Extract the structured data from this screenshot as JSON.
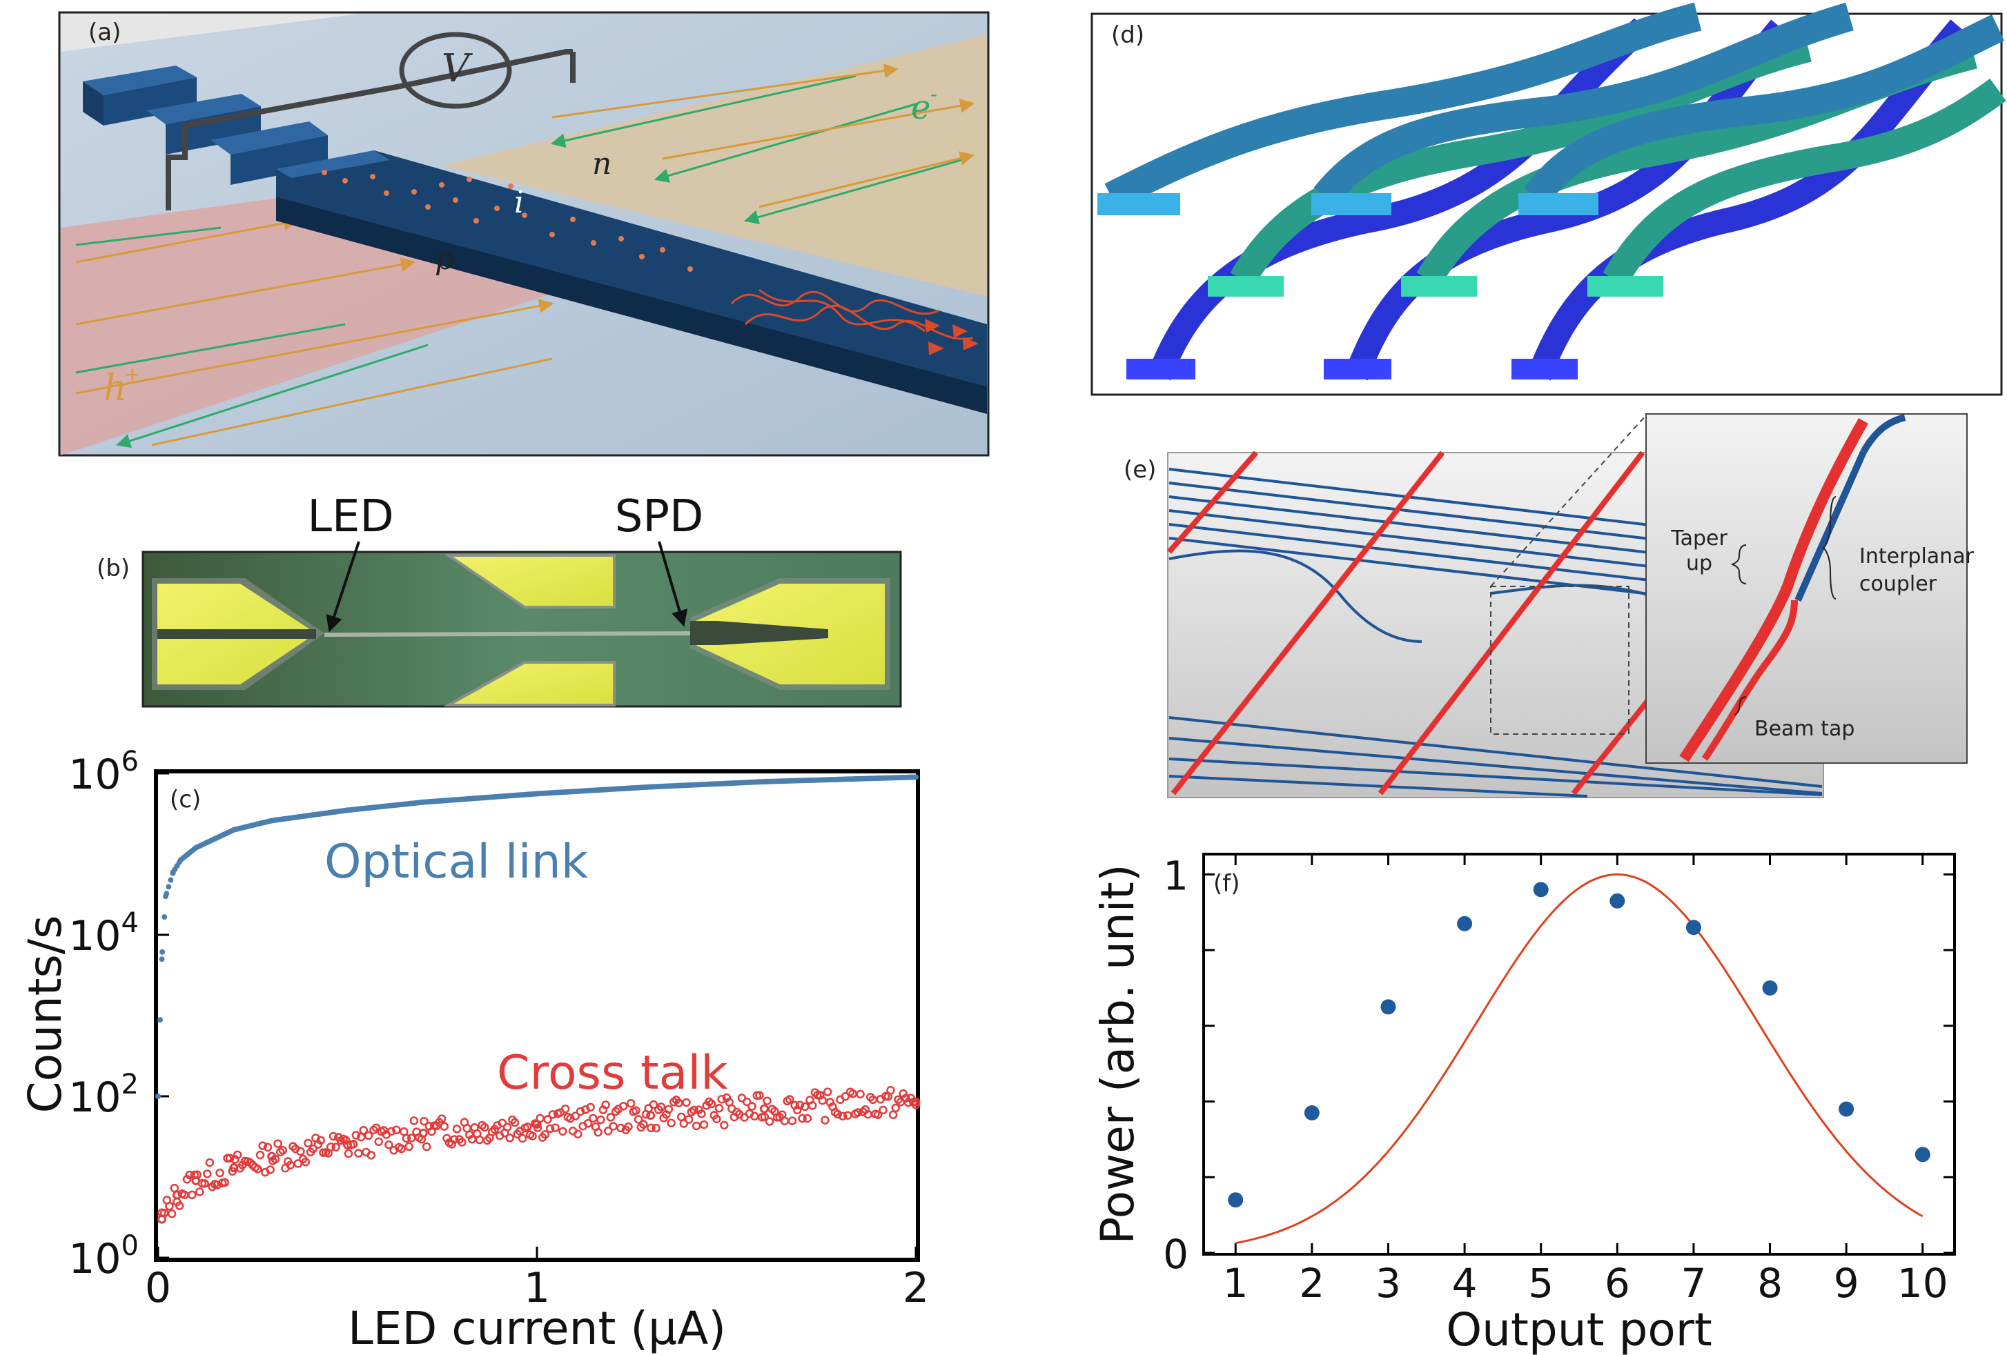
{
  "panels": {
    "a": {
      "letter": "(a)",
      "voltage_symbol": "V",
      "labels": {
        "n": "n",
        "i": "i",
        "p": "p",
        "electron": "e",
        "electron_sup": "-",
        "hole": "h",
        "hole_sup": "+"
      }
    },
    "b": {
      "letter": "(b)",
      "led_label": "LED",
      "spd_label": "SPD"
    },
    "c": {
      "letter": "(c)"
    },
    "d": {
      "letter": "(d)"
    },
    "e": {
      "letter": "(e)",
      "callouts": {
        "taper_line1": "Taper",
        "taper_line2": "up",
        "coupler_line1": "Interplanar",
        "coupler_line2": "coupler",
        "beam_tap": "Beam tap"
      }
    },
    "f": {
      "letter": "(f)"
    }
  },
  "colors": {
    "optical_link": "#4a7fae",
    "cross_talk": "#e23b3b",
    "fit_curve": "#e0401c",
    "points_f": "#1f5b9c",
    "waveguide_blue": "#1f5596",
    "waveguide_red": "#e53030"
  },
  "chart_data": [
    {
      "id": "c",
      "type": "scatter",
      "xlabel": "LED current (μA)",
      "ylabel": "Counts/s",
      "xlim": [
        0,
        2
      ],
      "ylim": [
        1,
        1000000
      ],
      "yscale": "log",
      "xticks": [
        "0",
        "1",
        "2"
      ],
      "yticks": [
        {
          "base": "10",
          "exp": "0"
        },
        {
          "base": "10",
          "exp": "2"
        },
        {
          "base": "10",
          "exp": "4"
        },
        {
          "base": "10",
          "exp": "6"
        }
      ],
      "series": [
        {
          "name": "Optical link",
          "x": [
            0.0,
            0.01,
            0.02,
            0.04,
            0.06,
            0.1,
            0.2,
            0.3,
            0.5,
            0.7,
            1.0,
            1.3,
            1.6,
            2.0
          ],
          "y": [
            100,
            5000,
            30000,
            60000,
            85000,
            120000,
            200000,
            260000,
            350000,
            440000,
            560000,
            680000,
            790000,
            900000
          ]
        },
        {
          "name": "Cross talk",
          "x": [
            0.01,
            0.05,
            0.1,
            0.2,
            0.3,
            0.5,
            0.7,
            1.0,
            1.3,
            1.6,
            2.0
          ],
          "y": [
            3,
            6,
            9,
            13,
            18,
            25,
            35,
            45,
            58,
            70,
            85
          ]
        }
      ]
    },
    {
      "id": "f",
      "type": "scatter",
      "xlabel": "Output port",
      "ylabel": "Power (arb. unit)",
      "xlim": [
        0.6,
        10.4
      ],
      "ylim": [
        0,
        1.05
      ],
      "categories": [
        "1",
        "2",
        "3",
        "4",
        "5",
        "6",
        "7",
        "8",
        "9",
        "10"
      ],
      "yticks": [
        "0",
        "1"
      ],
      "series": [
        {
          "x": [
            1,
            2,
            3,
            4,
            5,
            6,
            7,
            8,
            9,
            10
          ],
          "y": [
            0.14,
            0.37,
            0.65,
            0.87,
            0.96,
            0.93,
            0.86,
            0.7,
            0.38,
            0.26
          ]
        },
        {
          "type": "line",
          "curve": "gaussian fit",
          "center": 6.0,
          "peak": 1.0,
          "sigma": 1.85
        }
      ]
    }
  ]
}
